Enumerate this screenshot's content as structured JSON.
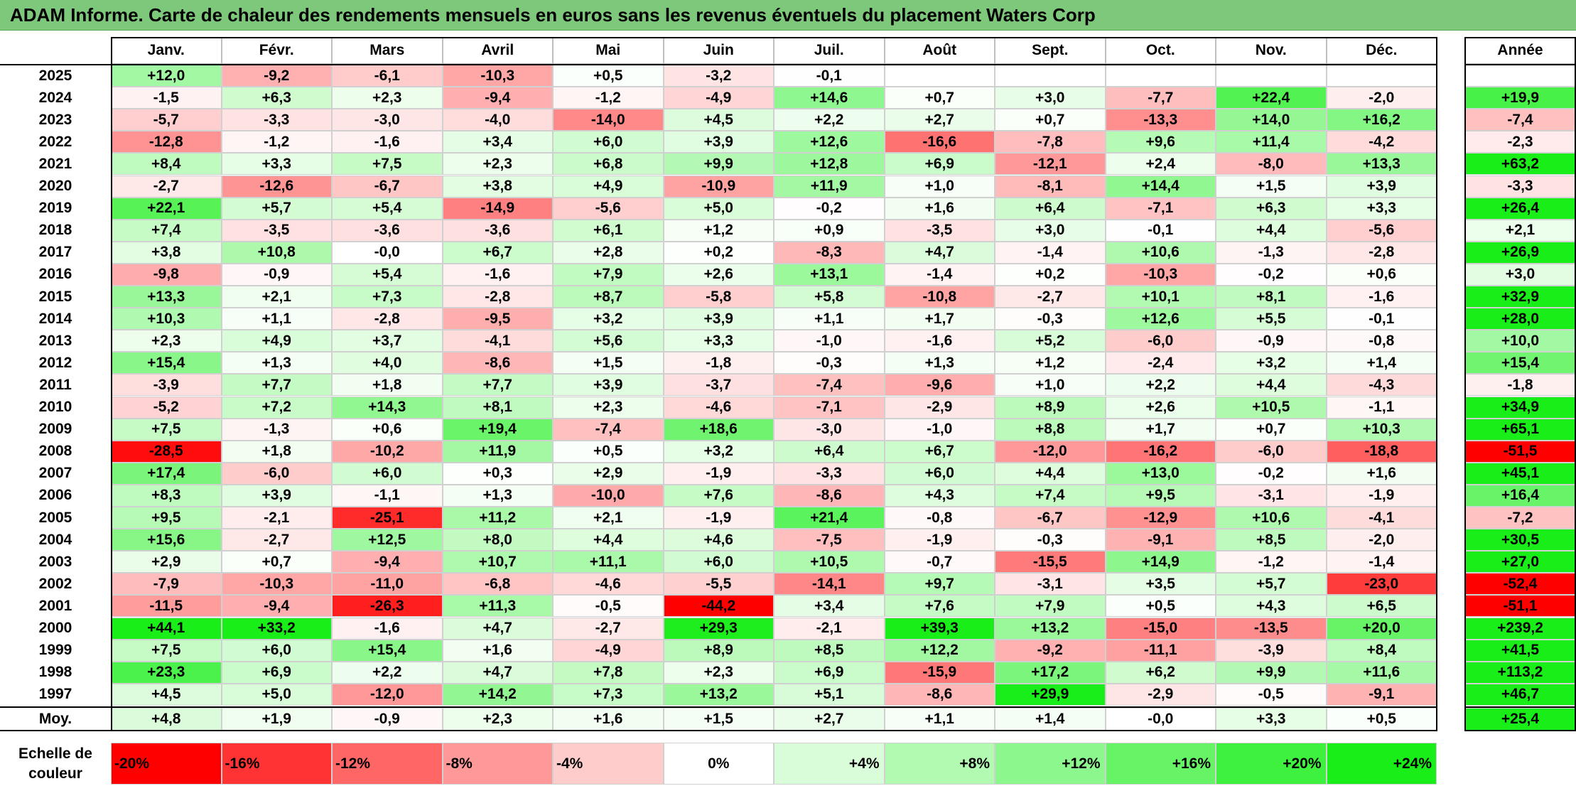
{
  "title": "ADAM Informe. Carte de chaleur des rendements mensuels en euros sans les revenus éventuels du placement Waters Corp",
  "months": [
    "Janv.",
    "Févr.",
    "Mars",
    "Avril",
    "Mai",
    "Juin",
    "Juil.",
    "Août",
    "Sept.",
    "Oct.",
    "Nov.",
    "Déc."
  ],
  "annual_header": "Année",
  "average_label": "Moy.",
  "scale_label": "Echelle de couleur",
  "colors": {
    "title_bg": "#7dc87a",
    "negative_max": "#ff0000",
    "neutral": "#ffffff",
    "positive_max": "#00ee00"
  },
  "chart_data": {
    "type": "heatmap",
    "title": "ADAM Informe. Carte de chaleur des rendements mensuels en euros sans les revenus éventuels du placement Waters Corp",
    "unit": "%",
    "rows": [
      {
        "year": "2025",
        "m": [
          "+12,0",
          "-9,2",
          "-6,1",
          "-10,3",
          "+0,5",
          "-3,2",
          "-0,1",
          "",
          "",
          "",
          "",
          ""
        ],
        "annual": ""
      },
      {
        "year": "2024",
        "m": [
          "-1,5",
          "+6,3",
          "+2,3",
          "-9,4",
          "-1,2",
          "-4,9",
          "+14,6",
          "+0,7",
          "+3,0",
          "-7,7",
          "+22,4",
          "-2,0"
        ],
        "annual": "+19,9"
      },
      {
        "year": "2023",
        "m": [
          "-5,7",
          "-3,3",
          "-3,0",
          "-4,0",
          "-14,0",
          "+4,5",
          "+2,2",
          "+2,7",
          "+0,7",
          "-13,3",
          "+14,0",
          "+16,2"
        ],
        "annual": "-7,4"
      },
      {
        "year": "2022",
        "m": [
          "-12,8",
          "-1,2",
          "-1,6",
          "+3,4",
          "+6,0",
          "+3,9",
          "+12,6",
          "-16,6",
          "-7,8",
          "+9,6",
          "+11,4",
          "-4,2"
        ],
        "annual": "-2,3"
      },
      {
        "year": "2021",
        "m": [
          "+8,4",
          "+3,3",
          "+7,5",
          "+2,3",
          "+6,8",
          "+9,9",
          "+12,8",
          "+6,9",
          "-12,1",
          "+2,4",
          "-8,0",
          "+13,3"
        ],
        "annual": "+63,2"
      },
      {
        "year": "2020",
        "m": [
          "-2,7",
          "-12,6",
          "-6,7",
          "+3,8",
          "+4,9",
          "-10,9",
          "+11,9",
          "+1,0",
          "-8,1",
          "+14,4",
          "+1,5",
          "+3,9"
        ],
        "annual": "-3,3"
      },
      {
        "year": "2019",
        "m": [
          "+22,1",
          "+5,7",
          "+5,4",
          "-14,9",
          "-5,6",
          "+5,0",
          "-0,2",
          "+1,6",
          "+6,4",
          "-7,1",
          "+6,3",
          "+3,3"
        ],
        "annual": "+26,4"
      },
      {
        "year": "2018",
        "m": [
          "+7,4",
          "-3,5",
          "-3,6",
          "-3,6",
          "+6,1",
          "+1,2",
          "+0,9",
          "-3,5",
          "+3,0",
          "-0,1",
          "+4,4",
          "-5,6"
        ],
        "annual": "+2,1"
      },
      {
        "year": "2017",
        "m": [
          "+3,8",
          "+10,8",
          "-0,0",
          "+6,7",
          "+2,8",
          "+0,2",
          "-8,3",
          "+4,7",
          "-1,4",
          "+10,6",
          "-1,3",
          "-2,8"
        ],
        "annual": "+26,9"
      },
      {
        "year": "2016",
        "m": [
          "-9,8",
          "-0,9",
          "+5,4",
          "-1,6",
          "+7,9",
          "+2,6",
          "+13,1",
          "-1,4",
          "+0,2",
          "-10,3",
          "-0,2",
          "+0,6"
        ],
        "annual": "+3,0"
      },
      {
        "year": "2015",
        "m": [
          "+13,3",
          "+2,1",
          "+7,3",
          "-2,8",
          "+8,7",
          "-5,8",
          "+5,8",
          "-10,8",
          "-2,7",
          "+10,1",
          "+8,1",
          "-1,6"
        ],
        "annual": "+32,9"
      },
      {
        "year": "2014",
        "m": [
          "+10,3",
          "+1,1",
          "-2,8",
          "-9,5",
          "+3,2",
          "+3,9",
          "+1,1",
          "+1,7",
          "-0,3",
          "+12,6",
          "+5,5",
          "-0,1"
        ],
        "annual": "+28,0"
      },
      {
        "year": "2013",
        "m": [
          "+2,3",
          "+4,9",
          "+3,7",
          "-4,1",
          "+5,6",
          "+3,3",
          "-1,0",
          "-1,6",
          "+5,2",
          "-6,0",
          "-0,9",
          "-0,8"
        ],
        "annual": "+10,0"
      },
      {
        "year": "2012",
        "m": [
          "+15,4",
          "+1,3",
          "+4,0",
          "-8,6",
          "+1,5",
          "-1,8",
          "-0,3",
          "+1,3",
          "+1,2",
          "-2,4",
          "+3,2",
          "+1,4"
        ],
        "annual": "+15,4"
      },
      {
        "year": "2011",
        "m": [
          "-3,9",
          "+7,7",
          "+1,8",
          "+7,7",
          "+3,9",
          "-3,7",
          "-7,4",
          "-9,6",
          "+1,0",
          "+2,2",
          "+4,4",
          "-4,3"
        ],
        "annual": "-1,8"
      },
      {
        "year": "2010",
        "m": [
          "-5,2",
          "+7,2",
          "+14,3",
          "+8,1",
          "+2,3",
          "-4,6",
          "-7,1",
          "-2,9",
          "+8,9",
          "+2,6",
          "+10,5",
          "-1,1"
        ],
        "annual": "+34,9"
      },
      {
        "year": "2009",
        "m": [
          "+7,5",
          "-1,3",
          "+0,6",
          "+19,4",
          "-7,4",
          "+18,6",
          "-3,0",
          "-1,0",
          "+8,8",
          "+1,7",
          "+0,7",
          "+10,3"
        ],
        "annual": "+65,1"
      },
      {
        "year": "2008",
        "m": [
          "-28,5",
          "+1,8",
          "-10,2",
          "+11,9",
          "+0,5",
          "+3,2",
          "+6,4",
          "+6,7",
          "-12,0",
          "-16,2",
          "-6,0",
          "-18,8"
        ],
        "annual": "-51,5"
      },
      {
        "year": "2007",
        "m": [
          "+17,4",
          "-6,0",
          "+6,0",
          "+0,3",
          "+2,9",
          "-1,9",
          "-3,3",
          "+6,0",
          "+4,4",
          "+13,0",
          "-0,2",
          "+1,6"
        ],
        "annual": "+45,1"
      },
      {
        "year": "2006",
        "m": [
          "+8,3",
          "+3,9",
          "-1,1",
          "+1,3",
          "-10,0",
          "+7,6",
          "-8,6",
          "+4,3",
          "+7,4",
          "+9,5",
          "-3,1",
          "-1,9"
        ],
        "annual": "+16,4"
      },
      {
        "year": "2005",
        "m": [
          "+9,5",
          "-2,1",
          "-25,1",
          "+11,2",
          "+2,1",
          "-1,9",
          "+21,4",
          "-0,8",
          "-6,7",
          "-12,9",
          "+10,6",
          "-4,1"
        ],
        "annual": "-7,2"
      },
      {
        "year": "2004",
        "m": [
          "+15,6",
          "-2,7",
          "+12,5",
          "+8,0",
          "+4,4",
          "+4,6",
          "-7,5",
          "-1,9",
          "-0,3",
          "-9,1",
          "+8,5",
          "-2,0"
        ],
        "annual": "+30,5"
      },
      {
        "year": "2003",
        "m": [
          "+2,9",
          "+0,7",
          "-9,4",
          "+10,7",
          "+11,1",
          "+6,0",
          "+10,5",
          "-0,7",
          "-15,5",
          "+14,9",
          "-1,2",
          "-1,4"
        ],
        "annual": "+27,0"
      },
      {
        "year": "2002",
        "m": [
          "-7,9",
          "-10,3",
          "-11,0",
          "-6,8",
          "-4,6",
          "-5,5",
          "-14,1",
          "+9,7",
          "-3,1",
          "+3,5",
          "+5,7",
          "-23,0"
        ],
        "annual": "-52,4"
      },
      {
        "year": "2001",
        "m": [
          "-11,5",
          "-9,4",
          "-26,3",
          "+11,3",
          "-0,5",
          "-44,2",
          "+3,4",
          "+7,6",
          "+7,9",
          "+0,5",
          "+4,3",
          "+6,5"
        ],
        "annual": "-51,1"
      },
      {
        "year": "2000",
        "m": [
          "+44,1",
          "+33,2",
          "-1,6",
          "+4,7",
          "-2,7",
          "+29,3",
          "-2,1",
          "+39,3",
          "+13,2",
          "-15,0",
          "-13,5",
          "+20,0"
        ],
        "annual": "+239,2"
      },
      {
        "year": "1999",
        "m": [
          "+7,5",
          "+6,0",
          "+15,4",
          "+1,6",
          "-4,9",
          "+8,9",
          "+8,5",
          "+12,2",
          "-9,2",
          "-11,1",
          "-3,9",
          "+8,4"
        ],
        "annual": "+41,5"
      },
      {
        "year": "1998",
        "m": [
          "+23,3",
          "+6,9",
          "+2,2",
          "+4,7",
          "+7,8",
          "+2,3",
          "+6,9",
          "-15,9",
          "+17,2",
          "+6,2",
          "+9,9",
          "+11,6"
        ],
        "annual": "+113,2"
      },
      {
        "year": "1997",
        "m": [
          "+4,5",
          "+5,0",
          "-12,0",
          "+14,2",
          "+7,3",
          "+13,2",
          "+5,1",
          "-8,6",
          "+29,9",
          "-2,9",
          "-0,5",
          "-9,1"
        ],
        "annual": "+46,7"
      }
    ],
    "average": {
      "m": [
        "+4,8",
        "+1,9",
        "-0,9",
        "+2,3",
        "+1,6",
        "+1,5",
        "+2,7",
        "+1,1",
        "+1,4",
        "-0,0",
        "+3,3",
        "+0,5"
      ],
      "annual": "+25,4"
    },
    "scale": [
      "-20%",
      "-16%",
      "-12%",
      "-8%",
      "-4%",
      "0%",
      "+4%",
      "+8%",
      "+12%",
      "+16%",
      "+20%",
      "+24%"
    ]
  }
}
